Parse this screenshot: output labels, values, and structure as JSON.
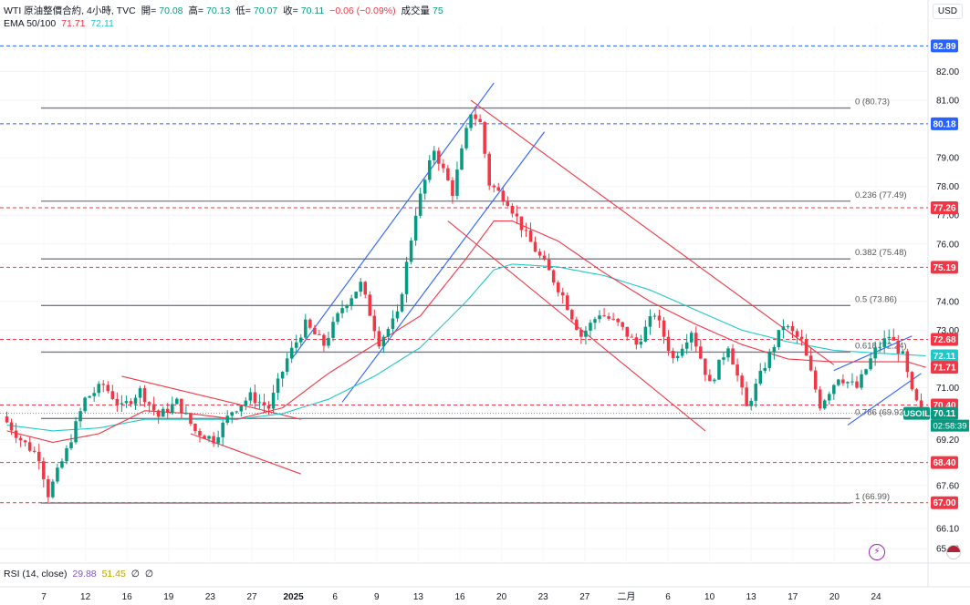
{
  "header": {
    "symbol_line": "WTI 原油整價合約, 4小時, TVC",
    "open_label": "開=",
    "open_value": "70.08",
    "high_label": "高=",
    "high_value": "70.13",
    "low_label": "低=",
    "low_value": "70.07",
    "close_label": "收=",
    "close_value": "70.11",
    "change": "−0.06 (−0.09%)",
    "volume_label": "成交量",
    "volume_value": "75",
    "ema_label": "EMA 50/100",
    "ema50_value": "71.71",
    "ema100_value": "72.11",
    "currency": "USD"
  },
  "rsi_panel": {
    "label": "RSI (14, close)",
    "value1": "29.88",
    "value2": "51.45",
    "value3": "∅",
    "value4": "∅"
  },
  "symbol_badge": "USOIL",
  "countdown": "02:58:39",
  "colors": {
    "up": "#089981",
    "down": "#f23645",
    "blue_line": "#2962ff",
    "red_line": "#f23645",
    "ema100": "#22c7c9",
    "fib": "#787b86"
  },
  "chart_data": {
    "type": "candlestick",
    "title": "WTI 原油整價合約, 4小時, TVC",
    "y_range": [
      64.9,
      83.6
    ],
    "y_ticks": [
      "82.00",
      "81.00",
      "79.00",
      "78.00",
      "77.00",
      "76.00",
      "74.00",
      "73.00",
      "71.00",
      "69.20",
      "67.60",
      "66.10",
      "65.40"
    ],
    "x_ticks": [
      "7",
      "12",
      "16",
      "19",
      "23",
      "27",
      "2025",
      "6",
      "9",
      "13",
      "16",
      "20",
      "23",
      "27",
      "二月",
      "6",
      "10",
      "13",
      "17",
      "20",
      "24"
    ],
    "bars_total": 200,
    "ohlc_knots": [
      [
        0,
        70.0
      ],
      [
        4,
        69.2
      ],
      [
        8,
        68.6
      ],
      [
        10,
        67.3
      ],
      [
        14,
        68.8
      ],
      [
        18,
        70.6
      ],
      [
        22,
        71.1
      ],
      [
        26,
        70.3
      ],
      [
        30,
        70.9
      ],
      [
        34,
        70.0
      ],
      [
        38,
        70.5
      ],
      [
        42,
        69.5
      ],
      [
        46,
        69.2
      ],
      [
        50,
        70.2
      ],
      [
        54,
        70.7
      ],
      [
        58,
        70.3
      ],
      [
        62,
        72.0
      ],
      [
        66,
        73.2
      ],
      [
        70,
        72.5
      ],
      [
        74,
        73.8
      ],
      [
        78,
        74.6
      ],
      [
        82,
        72.6
      ],
      [
        86,
        73.5
      ],
      [
        90,
        77.1
      ],
      [
        94,
        79.3
      ],
      [
        98,
        77.8
      ],
      [
        102,
        80.6
      ],
      [
        104,
        80.2
      ],
      [
        106,
        78.1
      ],
      [
        110,
        77.5
      ],
      [
        114,
        76.3
      ],
      [
        118,
        75.3
      ],
      [
        122,
        74.2
      ],
      [
        126,
        72.8
      ],
      [
        130,
        73.6
      ],
      [
        134,
        73.2
      ],
      [
        138,
        72.5
      ],
      [
        142,
        73.6
      ],
      [
        146,
        72.0
      ],
      [
        150,
        73.0
      ],
      [
        154,
        71.1
      ],
      [
        158,
        72.5
      ],
      [
        162,
        70.3
      ],
      [
        166,
        71.8
      ],
      [
        170,
        73.2
      ],
      [
        174,
        72.6
      ],
      [
        178,
        70.4
      ],
      [
        182,
        71.4
      ],
      [
        186,
        71.0
      ],
      [
        190,
        72.3
      ],
      [
        193,
        72.8
      ],
      [
        196,
        72.1
      ],
      [
        198,
        70.8
      ],
      [
        200,
        70.11
      ]
    ],
    "ema50_knots": [
      [
        0,
        69.5
      ],
      [
        10,
        69.1
      ],
      [
        20,
        69.4
      ],
      [
        30,
        70.2
      ],
      [
        40,
        70.1
      ],
      [
        50,
        69.9
      ],
      [
        60,
        70.3
      ],
      [
        70,
        71.5
      ],
      [
        80,
        72.5
      ],
      [
        90,
        73.5
      ],
      [
        100,
        75.5
      ],
      [
        106,
        76.8
      ],
      [
        110,
        76.8
      ],
      [
        120,
        76.1
      ],
      [
        130,
        75.0
      ],
      [
        140,
        74.0
      ],
      [
        150,
        73.2
      ],
      [
        160,
        72.5
      ],
      [
        170,
        72.0
      ],
      [
        180,
        71.9
      ],
      [
        190,
        71.9
      ],
      [
        196,
        71.9
      ],
      [
        200,
        71.71
      ]
    ],
    "ema100_knots": [
      [
        0,
        69.7
      ],
      [
        10,
        69.5
      ],
      [
        20,
        69.6
      ],
      [
        30,
        69.9
      ],
      [
        40,
        69.9
      ],
      [
        50,
        69.9
      ],
      [
        60,
        70.1
      ],
      [
        70,
        70.6
      ],
      [
        80,
        71.4
      ],
      [
        90,
        72.4
      ],
      [
        100,
        74.0
      ],
      [
        106,
        75.1
      ],
      [
        110,
        75.3
      ],
      [
        120,
        75.2
      ],
      [
        130,
        74.9
      ],
      [
        140,
        74.4
      ],
      [
        150,
        73.7
      ],
      [
        160,
        73.0
      ],
      [
        170,
        72.6
      ],
      [
        180,
        72.3
      ],
      [
        190,
        72.2
      ],
      [
        196,
        72.15
      ],
      [
        200,
        72.11
      ]
    ],
    "fib_levels": [
      {
        "label": "0 (80.73)",
        "value": 80.73
      },
      {
        "label": "0.236 (77.49)",
        "value": 77.49
      },
      {
        "label": "0.382 (75.48)",
        "value": 75.48
      },
      {
        "label": "0.5 (73.86)",
        "value": 73.86
      },
      {
        "label": "0.618 (72.24)",
        "value": 72.24
      },
      {
        "label": "0.786 (69.93)",
        "value": 69.93
      },
      {
        "label": "1 (66.99)",
        "value": 66.99
      }
    ],
    "horizontal_lines": [
      {
        "value": 82.89,
        "label": "82.89",
        "color": "#2962ff"
      },
      {
        "value": 80.18,
        "label": "80.18",
        "color": "#2962ff"
      },
      {
        "value": 77.26,
        "label": "77.26",
        "color": "#f23645"
      },
      {
        "value": 75.19,
        "label": "75.19",
        "color": "#f23645"
      },
      {
        "value": 72.68,
        "label": "72.68",
        "color": "#f23645"
      },
      {
        "value": 70.4,
        "label": "70.40",
        "color": "#f23645"
      },
      {
        "value": 68.4,
        "label": "68.40",
        "color": "#f23645"
      },
      {
        "value": 67.0,
        "label": "67.00",
        "color": "#f23645"
      }
    ],
    "price_tags": [
      {
        "value": 72.11,
        "label": "72.11",
        "color": "#22c7c9"
      },
      {
        "value": 71.71,
        "label": "71.71",
        "color": "#f23645"
      },
      {
        "value": 70.11,
        "label": "70.11",
        "color": "#089981"
      }
    ],
    "trend_lines": [
      {
        "from": [
          62,
          72.0
        ],
        "to": [
          106,
          81.6
        ],
        "color": "#2962ff"
      },
      {
        "from": [
          73,
          70.5
        ],
        "to": [
          117,
          79.9
        ],
        "color": "#2962ff"
      },
      {
        "from": [
          40,
          69.4
        ],
        "to": [
          64,
          68.0
        ],
        "color": "#f23645"
      },
      {
        "from": [
          25,
          71.4
        ],
        "to": [
          64,
          69.9
        ],
        "color": "#f23645"
      },
      {
        "from": [
          101,
          81.0
        ],
        "to": [
          180,
          71.8
        ],
        "color": "#f23645"
      },
      {
        "from": [
          96,
          76.8
        ],
        "to": [
          152,
          69.5
        ],
        "color": "#f23645"
      },
      {
        "from": [
          180,
          71.6
        ],
        "to": [
          197,
          72.8
        ],
        "color": "#2962ff"
      },
      {
        "from": [
          183,
          69.7
        ],
        "to": [
          199,
          71.5
        ],
        "color": "#2962ff"
      }
    ]
  }
}
